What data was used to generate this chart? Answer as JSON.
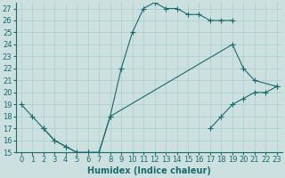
{
  "xlabel": "Humidex (Indice chaleur)",
  "bg_color": "#cce0e0",
  "grid_color": "#aacccc",
  "line_color": "#1a6b6b",
  "xlim": [
    -0.5,
    23.5
  ],
  "ylim": [
    15,
    27.5
  ],
  "xticks": [
    0,
    1,
    2,
    3,
    4,
    5,
    6,
    7,
    8,
    9,
    10,
    11,
    12,
    13,
    14,
    15,
    16,
    17,
    18,
    19,
    20,
    21,
    22,
    23
  ],
  "yticks": [
    15,
    16,
    17,
    18,
    19,
    20,
    21,
    22,
    23,
    24,
    25,
    26,
    27
  ],
  "curves": [
    {
      "x": [
        0,
        1,
        2,
        3,
        4,
        5,
        6,
        7,
        8,
        9,
        10,
        11,
        12,
        13,
        14,
        15,
        16,
        17,
        18,
        19
      ],
      "y": [
        19,
        18,
        17,
        16,
        15.5,
        15,
        15,
        15,
        18,
        22,
        25,
        27,
        27.5,
        27,
        27,
        26.5,
        26.5,
        26,
        26,
        26
      ]
    },
    {
      "x": [
        2,
        3,
        4,
        5,
        6,
        7,
        8,
        19,
        20,
        21,
        23
      ],
      "y": [
        17,
        16,
        15.5,
        15,
        15,
        15,
        18,
        24,
        22,
        21,
        20.5
      ]
    },
    {
      "x": [
        17,
        18,
        19,
        20,
        21,
        22,
        23
      ],
      "y": [
        17,
        18,
        19,
        19.5,
        20,
        20,
        20.5
      ]
    }
  ],
  "font_size_label": 7,
  "font_size_tick": 6
}
